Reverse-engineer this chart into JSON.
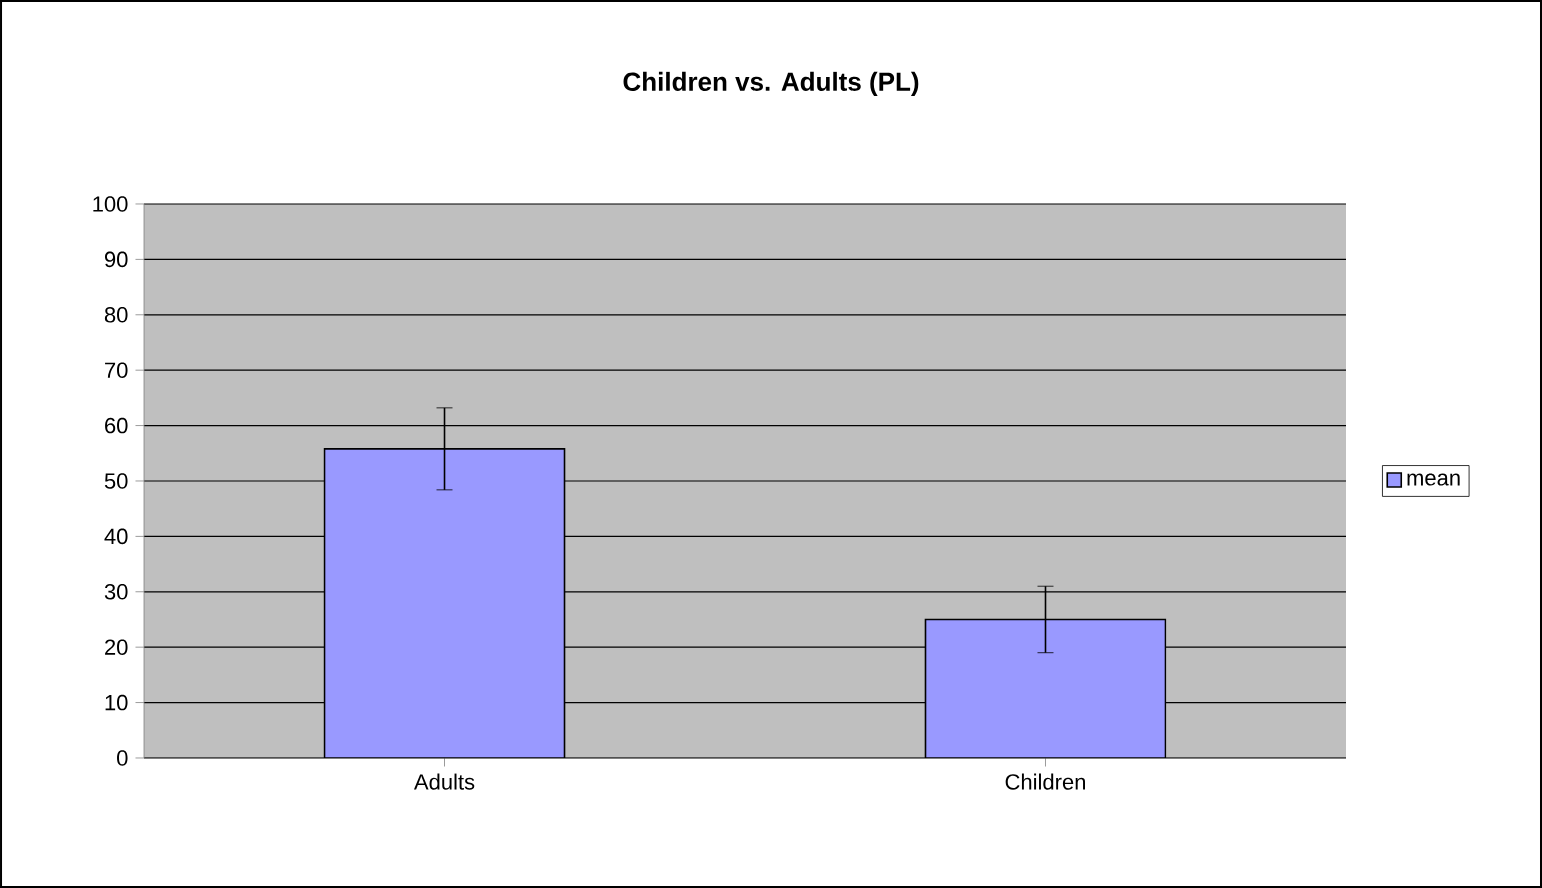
{
  "chart_data": {
    "type": "bar",
    "title": "Children vs. Adults (PL)",
    "categories": [
      "Adults",
      "Children"
    ],
    "series": [
      {
        "name": "mean",
        "color": "#9999ff",
        "values": [
          55.8,
          25
        ],
        "errors": [
          7.4,
          6
        ]
      }
    ],
    "ylim": [
      0,
      100
    ],
    "yticks": [
      0,
      10,
      20,
      30,
      40,
      50,
      60,
      70,
      80,
      90,
      100
    ],
    "grid": "y",
    "legend": "right"
  }
}
